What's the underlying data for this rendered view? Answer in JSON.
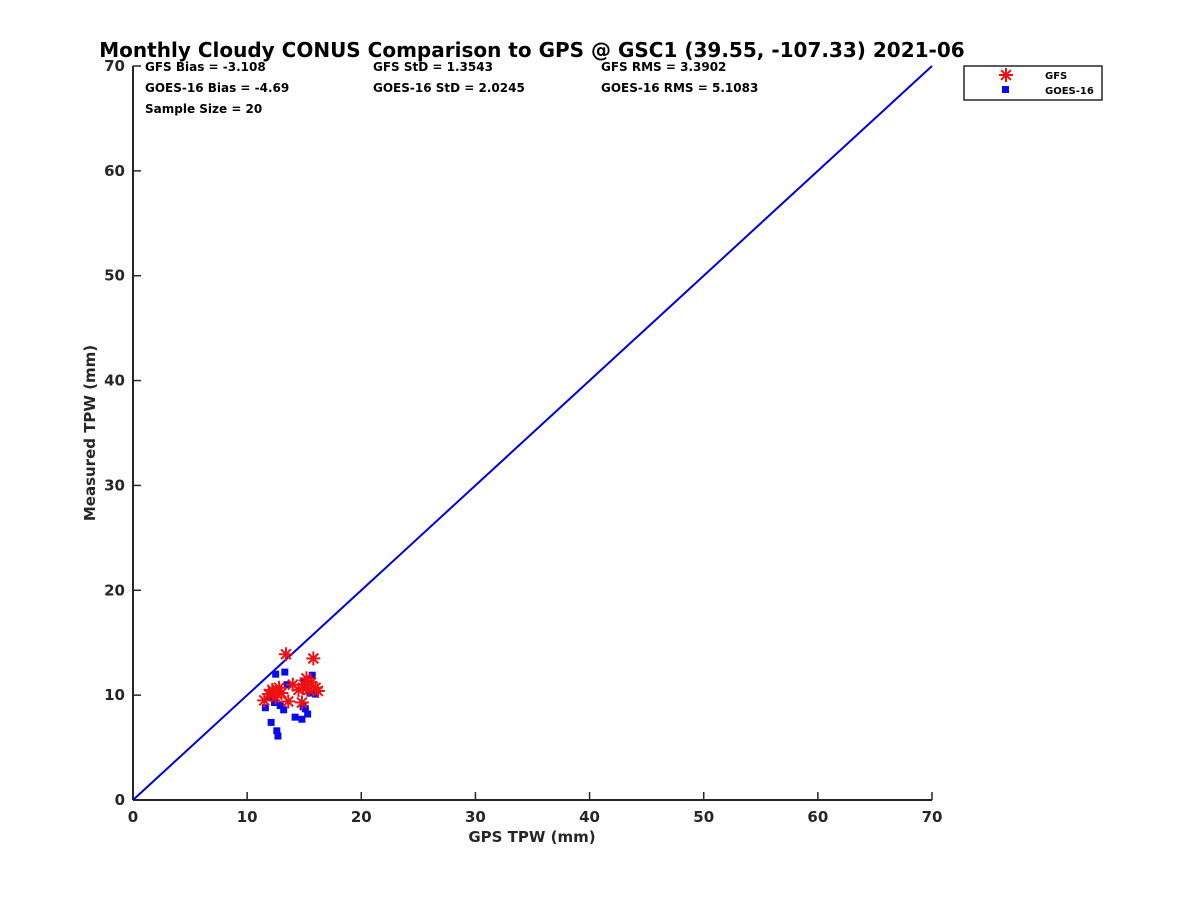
{
  "chart_data": {
    "type": "scatter",
    "title": "Monthly Cloudy CONUS Comparison to GPS @ GSC1 (39.55, -107.33) 2021-06",
    "xlabel": "GPS TPW (mm)",
    "ylabel": "Measured TPW (mm)",
    "xlim": [
      0,
      70
    ],
    "ylim": [
      0,
      70
    ],
    "xticks": [
      0,
      10,
      20,
      30,
      40,
      50,
      60,
      70
    ],
    "yticks": [
      0,
      10,
      20,
      30,
      40,
      50,
      60,
      70
    ],
    "grid": false,
    "legend_position": "top-right-outside",
    "stats": {
      "gfs_bias": "GFS Bias = -3.108",
      "goes_bias": "GOES-16 Bias = -4.69",
      "sample_size": "Sample Size = 20",
      "gfs_std": "GFS StD = 1.3543",
      "goes_std": "GOES-16 StD = 2.0245",
      "gfs_rms": "GFS RMS = 3.3902",
      "goes_rms": "GOES-16 RMS = 5.1083"
    },
    "reference_line": {
      "x": [
        0,
        70
      ],
      "y": [
        0,
        70
      ],
      "color": "#0000dd"
    },
    "series": [
      {
        "name": "GFS",
        "marker": "asterisk",
        "color": "#ee1111",
        "points": [
          [
            11.5,
            9.5
          ],
          [
            11.9,
            10.1
          ],
          [
            12.2,
            10.5
          ],
          [
            12.5,
            9.8
          ],
          [
            12.8,
            10.7
          ],
          [
            13.0,
            10.2
          ],
          [
            13.4,
            13.9
          ],
          [
            13.6,
            9.4
          ],
          [
            14.0,
            11.0
          ],
          [
            14.5,
            10.5
          ],
          [
            14.8,
            9.3
          ],
          [
            15.0,
            11.0
          ],
          [
            15.2,
            11.6
          ],
          [
            15.4,
            10.5
          ],
          [
            15.6,
            11.2
          ],
          [
            15.8,
            13.5
          ],
          [
            16.0,
            10.7
          ],
          [
            16.2,
            10.4
          ],
          [
            12.3,
            10.3
          ],
          [
            14.9,
            10.7
          ]
        ]
      },
      {
        "name": "GOES-16",
        "marker": "square",
        "color": "#0a0aee",
        "points": [
          [
            11.6,
            8.8
          ],
          [
            12.0,
            9.9
          ],
          [
            12.1,
            7.4
          ],
          [
            12.5,
            12.0
          ],
          [
            12.6,
            6.6
          ],
          [
            12.7,
            6.1
          ],
          [
            12.9,
            9.0
          ],
          [
            13.2,
            8.6
          ],
          [
            13.3,
            12.2
          ],
          [
            13.5,
            11.0
          ],
          [
            14.2,
            7.9
          ],
          [
            14.8,
            7.7
          ],
          [
            14.9,
            8.9
          ],
          [
            15.1,
            8.7
          ],
          [
            15.3,
            8.2
          ],
          [
            15.5,
            10.2
          ],
          [
            15.7,
            11.9
          ],
          [
            16.0,
            10.1
          ],
          [
            12.4,
            9.3
          ],
          [
            15.0,
            11.3
          ]
        ]
      }
    ]
  }
}
